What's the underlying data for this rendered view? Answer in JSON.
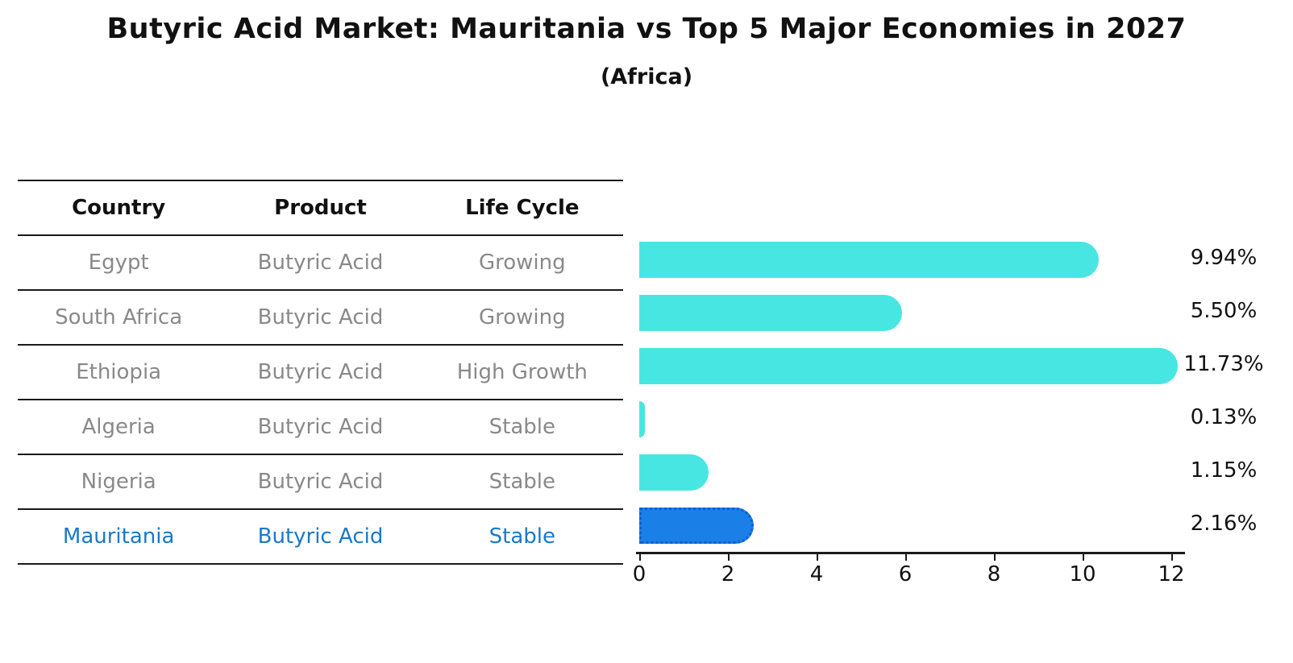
{
  "title": "Butyric Acid Market: Mauritania vs Top 5 Major Economies in 2027",
  "subtitle": "(Africa)",
  "table": {
    "headers": [
      "Country",
      "Product",
      "Life Cycle"
    ],
    "rows": [
      {
        "country": "Egypt",
        "product": "Butyric Acid",
        "life_cycle": "Growing",
        "value": 9.94,
        "value_label": "9.94%",
        "highlight": false
      },
      {
        "country": "South Africa",
        "product": "Butyric Acid",
        "life_cycle": "Growing",
        "value": 5.5,
        "value_label": "5.50%",
        "highlight": false
      },
      {
        "country": "Ethiopia",
        "product": "Butyric Acid",
        "life_cycle": "High Growth",
        "value": 11.73,
        "value_label": "11.73%",
        "highlight": false
      },
      {
        "country": "Algeria",
        "product": "Butyric Acid",
        "life_cycle": "Stable",
        "value": 0.13,
        "value_label": "0.13%",
        "highlight": false
      },
      {
        "country": "Nigeria",
        "product": "Butyric Acid",
        "life_cycle": "Stable",
        "value": 1.15,
        "value_label": "1.15%",
        "highlight": false
      },
      {
        "country": "Mauritania",
        "product": "Butyric Acid",
        "life_cycle": "Stable",
        "value": 2.16,
        "value_label": "2.16%",
        "highlight": true
      }
    ]
  },
  "chart_data": {
    "type": "bar",
    "orientation": "horizontal",
    "title": "Butyric Acid Market: Mauritania vs Top 5 Major Economies in 2027",
    "subtitle": "(Africa)",
    "categories": [
      "Egypt",
      "South Africa",
      "Ethiopia",
      "Algeria",
      "Nigeria",
      "Mauritania"
    ],
    "values": [
      9.94,
      5.5,
      11.73,
      0.13,
      1.15,
      2.16
    ],
    "value_labels": [
      "9.94%",
      "5.50%",
      "11.73%",
      "0.13%",
      "1.15%",
      "2.16%"
    ],
    "xlabel": "",
    "ylabel": "",
    "xlim": [
      0,
      12
    ],
    "x_ticks": [
      0,
      2,
      4,
      6,
      8,
      10,
      12
    ],
    "grid": false,
    "legend": false,
    "bar_color": "#48e6e2",
    "highlight_color": "#1b7fe8",
    "highlight_category": "Mauritania",
    "highlight_text_color": "#1b78ca"
  },
  "colors": {
    "bar": "#48e6e2",
    "highlight_bar": "#1b7fe8",
    "highlight_text": "#1b78ca",
    "table_text": "#898989",
    "heading_text": "#111111",
    "line": "#1a1a1a"
  }
}
